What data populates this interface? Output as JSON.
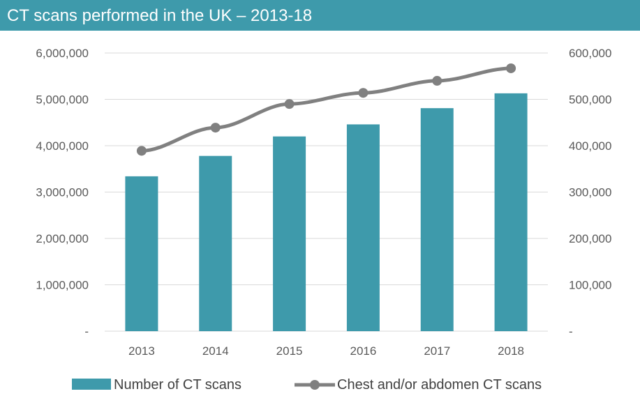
{
  "chart_data": {
    "type": "bar",
    "title": "CT scans performed in the UK – 2013-18",
    "categories": [
      "2013",
      "2014",
      "2015",
      "2016",
      "2017",
      "2018"
    ],
    "series": [
      {
        "name": "Number of CT scans",
        "type": "bar",
        "axis": "left",
        "color": "#3e9aab",
        "values": [
          3340000,
          3780000,
          4200000,
          4460000,
          4810000,
          5130000
        ]
      },
      {
        "name": "Chest and/or abdomen CT scans",
        "type": "line",
        "axis": "right",
        "color": "#808080",
        "values": [
          389000,
          439000,
          490000,
          514000,
          540000,
          567000
        ]
      }
    ],
    "y_left": {
      "range": [
        0,
        6000000
      ],
      "tick_labels": [
        "-",
        "1,000,000",
        "2,000,000",
        "3,000,000",
        "4,000,000",
        "5,000,000",
        "6,000,000"
      ]
    },
    "y_right": {
      "range": [
        0,
        600000
      ],
      "tick_labels": [
        "-",
        "100,000",
        "200,000",
        "300,000",
        "400,000",
        "500,000",
        "600,000"
      ]
    },
    "grid": true,
    "legend_position": "bottom"
  }
}
